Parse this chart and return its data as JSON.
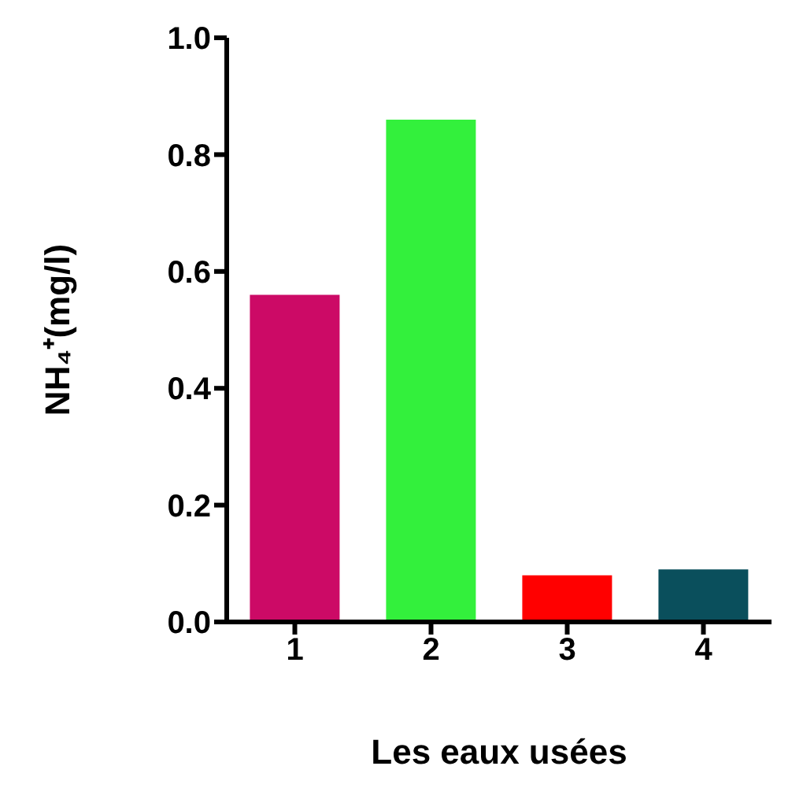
{
  "chart_data": {
    "type": "bar",
    "categories": [
      "1",
      "2",
      "3",
      "4"
    ],
    "values": [
      0.56,
      0.86,
      0.08,
      0.09
    ],
    "colors": [
      "#cc0a66",
      "#33f03c",
      "#ff0000",
      "#0a4f5c"
    ],
    "xlabel": "Les eaux usées",
    "ylabel": "NH₄⁺(mg/l)",
    "ylim": [
      0,
      1
    ],
    "yticks": [
      {
        "value": 0,
        "label": "0.0"
      },
      0.2,
      0.4,
      0.6,
      0.8,
      {
        "value": 1,
        "label": "1.0"
      }
    ],
    "grid": false
  }
}
